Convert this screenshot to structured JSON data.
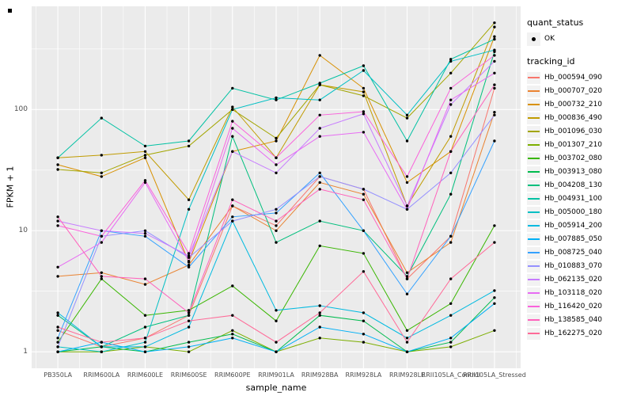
{
  "chart_data": {
    "type": "line",
    "title": "",
    "xlabel": "sample_name",
    "ylabel": "FPKM + 1",
    "y_scale": "log10",
    "y_ticks": [
      1,
      10,
      100
    ],
    "ylim_log": [
      -0.136,
      2.852
    ],
    "grid": true,
    "legend_position": "right",
    "categories": [
      "PB350LA",
      "RRIM600LA",
      "RRIM600LE",
      "RRIM600SE",
      "RRIM600PE",
      "RRIM901LA",
      "RRIM928BA",
      "RRIM928LA",
      "RRIM928LE",
      "RRII105LA_Control",
      "RRII105LA_Stressed"
    ],
    "series": [
      {
        "name": "Hb_000594_090",
        "color": "#F8766D",
        "values": [
          1.5,
          1.1,
          1.3,
          2.0,
          16,
          11,
          28,
          22,
          4.0,
          9,
          150
        ]
      },
      {
        "name": "Hb_000707_020",
        "color": "#EA8331",
        "values": [
          4.2,
          4.5,
          3.6,
          5.2,
          16,
          10,
          25,
          20,
          4.5,
          8,
          95
        ]
      },
      {
        "name": "Hb_000732_210",
        "color": "#D89000",
        "values": [
          35,
          28,
          40,
          5.5,
          45,
          55,
          280,
          150,
          25,
          45,
          400
        ]
      },
      {
        "name": "Hb_000836_490",
        "color": "#C09B00",
        "values": [
          40,
          42,
          45,
          18,
          105,
          40,
          160,
          140,
          16,
          60,
          480
        ]
      },
      {
        "name": "Hb_001096_030",
        "color": "#A3A500",
        "values": [
          32,
          30,
          42,
          50,
          100,
          58,
          160,
          130,
          85,
          200,
          520
        ]
      },
      {
        "name": "Hb_001307_210",
        "color": "#7CAE00",
        "values": [
          1.0,
          1.0,
          1.1,
          1.0,
          1.5,
          1.0,
          1.3,
          1.2,
          1.0,
          1.1,
          1.5
        ]
      },
      {
        "name": "Hb_003702_080",
        "color": "#39B600",
        "values": [
          1.2,
          4.0,
          2.0,
          2.2,
          3.5,
          1.8,
          7.5,
          6.5,
          1.5,
          2.5,
          11
        ]
      },
      {
        "name": "Hb_003913_080",
        "color": "#00BB4E",
        "values": [
          1.0,
          1.1,
          1.0,
          1.2,
          1.4,
          1.0,
          2.0,
          1.8,
          1.0,
          1.2,
          2.8
        ]
      },
      {
        "name": "Hb_004208_130",
        "color": "#00BF7D",
        "values": [
          2.0,
          1.1,
          1.6,
          2.0,
          60,
          8,
          12,
          10,
          4.2,
          20,
          300
        ]
      },
      {
        "name": "Hb_004931_100",
        "color": "#00C1A3",
        "values": [
          40,
          85,
          50,
          55,
          150,
          120,
          165,
          230,
          55,
          260,
          380
        ]
      },
      {
        "name": "Hb_005000_180",
        "color": "#00BFC4",
        "values": [
          1.1,
          1.0,
          1.2,
          15,
          100,
          125,
          120,
          210,
          90,
          250,
          310
        ]
      },
      {
        "name": "Hb_005914_200",
        "color": "#00BAE0",
        "values": [
          2.1,
          1.1,
          1.1,
          1.6,
          12,
          2.2,
          2.4,
          2.1,
          1.3,
          2.0,
          3.2
        ]
      },
      {
        "name": "Hb_007885_050",
        "color": "#00B0F6",
        "values": [
          1.0,
          1.2,
          1.0,
          1.1,
          1.3,
          1.0,
          1.6,
          1.4,
          1.0,
          1.3,
          2.5
        ]
      },
      {
        "name": "Hb_008725_040",
        "color": "#35A2FF",
        "values": [
          1.3,
          10,
          9,
          5.0,
          13,
          14,
          30,
          10,
          3.0,
          9,
          55
        ]
      },
      {
        "name": "Hb_010883_070",
        "color": "#9590FF",
        "values": [
          1.1,
          9,
          10,
          6.0,
          12,
          15,
          28,
          22,
          15,
          30,
          90
        ]
      },
      {
        "name": "Hb_062135_020",
        "color": "#C77CFF",
        "values": [
          12,
          10,
          9.5,
          6.2,
          45,
          30,
          70,
          92,
          16,
          110,
          250
        ]
      },
      {
        "name": "Hb_103118_020",
        "color": "#E76BF3",
        "values": [
          5.0,
          8,
          25,
          5.6,
          70,
          35,
          60,
          65,
          15,
          120,
          200
        ]
      },
      {
        "name": "Hb_116420_020",
        "color": "#FA62DB",
        "values": [
          11,
          9,
          26,
          6.5,
          80,
          40,
          90,
          96,
          28,
          150,
          280
        ]
      },
      {
        "name": "Hb_138585_040",
        "color": "#FF62BC",
        "values": [
          13,
          4.2,
          4.0,
          2.1,
          18,
          12,
          22,
          18,
          4.0,
          45,
          160
        ]
      },
      {
        "name": "Hb_162275_020",
        "color": "#FF6A98",
        "values": [
          1.6,
          1.2,
          1.3,
          1.8,
          2.0,
          1.2,
          2.1,
          4.6,
          1.2,
          4.0,
          8
        ]
      }
    ]
  },
  "legend": {
    "quant_status_title": "quant_status",
    "quant_status_label": "OK",
    "tracking_id_title": "tracking_id"
  },
  "colors": {
    "panel_bg": "#EBEBEB",
    "grid": "#FFFFFF",
    "tick_label": "#4D4D4D",
    "point": "#000000",
    "legend_key_bg": "#F2F2F2"
  }
}
